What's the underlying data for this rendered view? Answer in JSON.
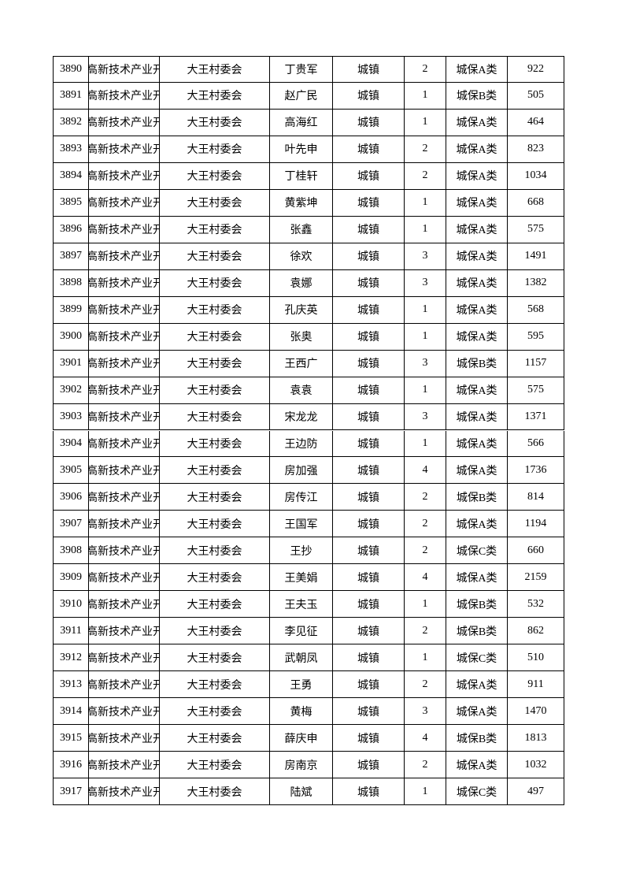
{
  "table": {
    "rows": [
      [
        3890,
        "高新技术产业开",
        "大王村委会",
        "丁贵军",
        "城镇",
        2,
        "城保A类",
        922
      ],
      [
        3891,
        "高新技术产业开",
        "大王村委会",
        "赵广民",
        "城镇",
        1,
        "城保B类",
        505
      ],
      [
        3892,
        "高新技术产业开",
        "大王村委会",
        "高海红",
        "城镇",
        1,
        "城保A类",
        464
      ],
      [
        3893,
        "高新技术产业开",
        "大王村委会",
        "叶先申",
        "城镇",
        2,
        "城保A类",
        823
      ],
      [
        3894,
        "高新技术产业开",
        "大王村委会",
        "丁桂轩",
        "城镇",
        2,
        "城保A类",
        1034
      ],
      [
        3895,
        "高新技术产业开",
        "大王村委会",
        "黄紫坤",
        "城镇",
        1,
        "城保A类",
        668
      ],
      [
        3896,
        "高新技术产业开",
        "大王村委会",
        "张鑫",
        "城镇",
        1,
        "城保A类",
        575
      ],
      [
        3897,
        "高新技术产业开",
        "大王村委会",
        "徐欢",
        "城镇",
        3,
        "城保A类",
        1491
      ],
      [
        3898,
        "高新技术产业开",
        "大王村委会",
        "袁娜",
        "城镇",
        3,
        "城保A类",
        1382
      ],
      [
        3899,
        "高新技术产业开",
        "大王村委会",
        "孔庆英",
        "城镇",
        1,
        "城保A类",
        568
      ],
      [
        3900,
        "高新技术产业开",
        "大王村委会",
        "张奥",
        "城镇",
        1,
        "城保A类",
        595
      ],
      [
        3901,
        "高新技术产业开",
        "大王村委会",
        "王西广",
        "城镇",
        3,
        "城保B类",
        1157
      ],
      [
        3902,
        "高新技术产业开",
        "大王村委会",
        "袁袁",
        "城镇",
        1,
        "城保A类",
        575
      ],
      [
        3903,
        "高新技术产业开",
        "大王村委会",
        "宋龙龙",
        "城镇",
        3,
        "城保A类",
        1371
      ],
      [
        3904,
        "高新技术产业开",
        "大王村委会",
        "王边防",
        "城镇",
        1,
        "城保A类",
        566
      ],
      [
        3905,
        "高新技术产业开",
        "大王村委会",
        "房加强",
        "城镇",
        4,
        "城保A类",
        1736
      ],
      [
        3906,
        "高新技术产业开",
        "大王村委会",
        "房传江",
        "城镇",
        2,
        "城保B类",
        814
      ],
      [
        3907,
        "高新技术产业开",
        "大王村委会",
        "王国军",
        "城镇",
        2,
        "城保A类",
        1194
      ],
      [
        3908,
        "高新技术产业开",
        "大王村委会",
        "王抄",
        "城镇",
        2,
        "城保C类",
        660
      ],
      [
        3909,
        "高新技术产业开",
        "大王村委会",
        "王美娟",
        "城镇",
        4,
        "城保A类",
        2159
      ],
      [
        3910,
        "高新技术产业开",
        "大王村委会",
        "王夫玉",
        "城镇",
        1,
        "城保B类",
        532
      ],
      [
        3911,
        "高新技术产业开",
        "大王村委会",
        "李见征",
        "城镇",
        2,
        "城保B类",
        862
      ],
      [
        3912,
        "高新技术产业开",
        "大王村委会",
        "武朝凤",
        "城镇",
        1,
        "城保C类",
        510
      ],
      [
        3913,
        "高新技术产业开",
        "大王村委会",
        "王勇",
        "城镇",
        2,
        "城保A类",
        911
      ],
      [
        3914,
        "高新技术产业开",
        "大王村委会",
        "黄梅",
        "城镇",
        3,
        "城保A类",
        1470
      ],
      [
        3915,
        "高新技术产业开",
        "大王村委会",
        "薛庆申",
        "城镇",
        4,
        "城保B类",
        1813
      ],
      [
        3916,
        "高新技术产业开",
        "大王村委会",
        "房南京",
        "城镇",
        2,
        "城保A类",
        1032
      ],
      [
        3917,
        "高新技术产业开",
        "大王村委会",
        "陆斌",
        "城镇",
        1,
        "城保C类",
        497
      ]
    ]
  }
}
